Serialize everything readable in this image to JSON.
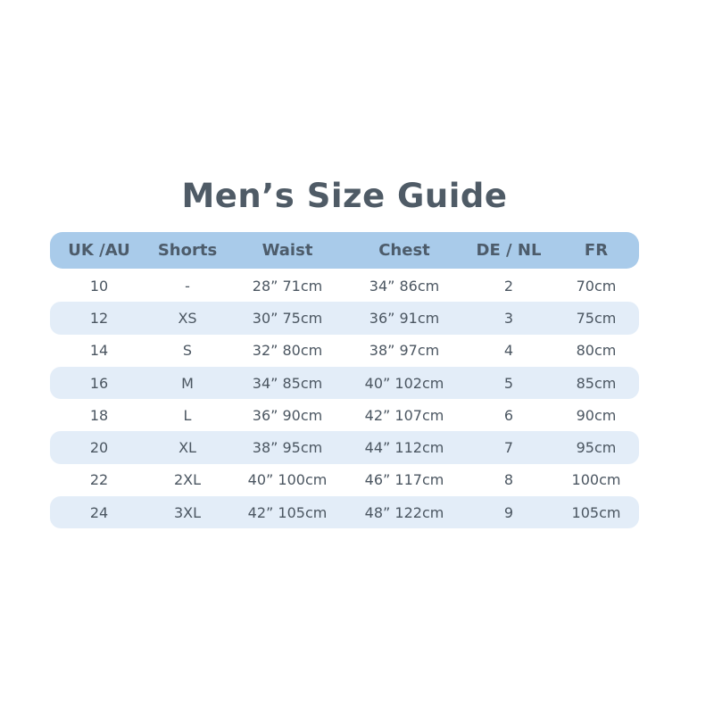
{
  "title": "Men’s Size Guide",
  "colors": {
    "header_bg": "#a9cbea",
    "stripe_bg": "#e3edf8",
    "text": "#4b5661"
  },
  "columns": [
    "UK /AU",
    "Shorts",
    "Waist",
    "Chest",
    "DE / NL",
    "FR"
  ],
  "rows": [
    [
      "10",
      "-",
      "28” 71cm",
      "34” 86cm",
      "2",
      "70cm"
    ],
    [
      "12",
      "XS",
      "30” 75cm",
      "36” 91cm",
      "3",
      "75cm"
    ],
    [
      "14",
      "S",
      "32” 80cm",
      "38” 97cm",
      "4",
      "80cm"
    ],
    [
      "16",
      "M",
      "34” 85cm",
      "40” 102cm",
      "5",
      "85cm"
    ],
    [
      "18",
      "L",
      "36” 90cm",
      "42” 107cm",
      "6",
      "90cm"
    ],
    [
      "20",
      "XL",
      "38” 95cm",
      "44” 112cm",
      "7",
      "95cm"
    ],
    [
      "22",
      "2XL",
      "40” 100cm",
      "46” 117cm",
      "8",
      "100cm"
    ],
    [
      "24",
      "3XL",
      "42” 105cm",
      "48” 122cm",
      "9",
      "105cm"
    ]
  ]
}
